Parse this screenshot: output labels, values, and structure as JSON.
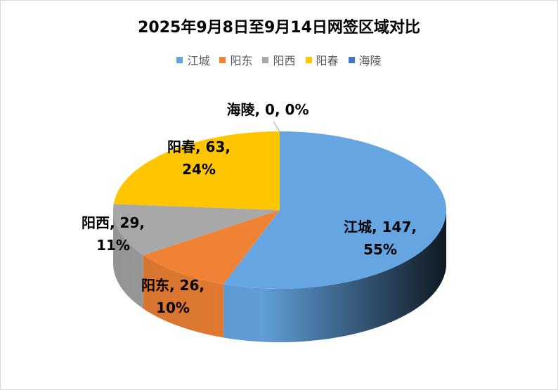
{
  "chart_data": {
    "type": "pie3d",
    "title": "2025年9月8日至9月14日网签区域对比",
    "categories": [
      "江城",
      "阳东",
      "阳西",
      "阳春",
      "海陵"
    ],
    "values": [
      147,
      26,
      29,
      63,
      0
    ],
    "value_labels": [
      "江城, 147, 55%",
      "阳东, 26, 10%",
      "阳西, 29, 11%",
      "阳春, 63, 24%",
      "海陵, 0, 0%"
    ],
    "colors": [
      "#64a5e2",
      "#f08235",
      "#a8a8a8",
      "#ffc600",
      "#4472c4"
    ],
    "legend": "top"
  }
}
